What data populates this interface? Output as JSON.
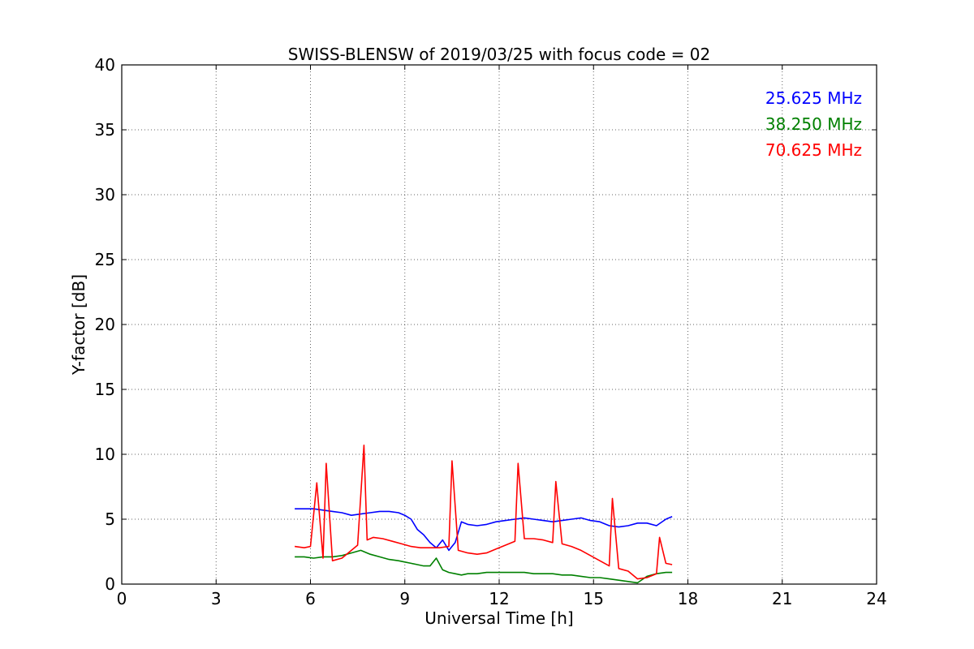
{
  "chart_data": {
    "type": "line",
    "title": "SWISS-BLENSW of 2019/03/25 with focus code = 02",
    "xlabel": "Universal Time [h]",
    "ylabel": "Y-factor [dB]",
    "xlim": [
      0,
      24
    ],
    "ylim": [
      0,
      40
    ],
    "xticks": [
      0,
      3,
      6,
      9,
      12,
      15,
      18,
      21,
      24
    ],
    "yticks": [
      0,
      5,
      10,
      15,
      20,
      25,
      30,
      35,
      40
    ],
    "grid": true,
    "legend_position": "top-right",
    "series": [
      {
        "name": "25.625 MHz",
        "color": "#0000ff",
        "x": [
          5.5,
          5.8,
          6.1,
          6.4,
          6.7,
          7.0,
          7.3,
          7.6,
          7.9,
          8.2,
          8.5,
          8.8,
          9.0,
          9.2,
          9.4,
          9.6,
          9.8,
          10.0,
          10.2,
          10.4,
          10.6,
          10.8,
          11.0,
          11.3,
          11.6,
          11.9,
          12.2,
          12.5,
          12.8,
          13.1,
          13.4,
          13.7,
          14.0,
          14.3,
          14.6,
          14.9,
          15.2,
          15.5,
          15.8,
          16.1,
          16.4,
          16.7,
          17.0,
          17.3,
          17.5
        ],
        "y": [
          5.8,
          5.8,
          5.8,
          5.7,
          5.6,
          5.5,
          5.3,
          5.4,
          5.5,
          5.6,
          5.6,
          5.5,
          5.3,
          5.0,
          4.2,
          3.8,
          3.2,
          2.8,
          3.4,
          2.6,
          3.2,
          4.8,
          4.6,
          4.5,
          4.6,
          4.8,
          4.9,
          5.0,
          5.1,
          5.0,
          4.9,
          4.8,
          4.9,
          5.0,
          5.1,
          4.9,
          4.8,
          4.5,
          4.4,
          4.5,
          4.7,
          4.7,
          4.5,
          5.0,
          5.2
        ]
      },
      {
        "name": "38.250 MHz",
        "color": "#008000",
        "x": [
          5.5,
          5.8,
          6.1,
          6.4,
          6.7,
          7.0,
          7.3,
          7.6,
          7.9,
          8.2,
          8.5,
          8.8,
          9.0,
          9.2,
          9.4,
          9.6,
          9.8,
          10.0,
          10.2,
          10.4,
          10.6,
          10.8,
          11.0,
          11.3,
          11.6,
          11.9,
          12.2,
          12.5,
          12.8,
          13.1,
          13.4,
          13.7,
          14.0,
          14.3,
          14.6,
          14.9,
          15.2,
          15.5,
          15.8,
          16.1,
          16.4,
          16.7,
          17.0,
          17.3,
          17.5
        ],
        "y": [
          2.1,
          2.1,
          2.0,
          2.1,
          2.1,
          2.2,
          2.4,
          2.6,
          2.3,
          2.1,
          1.9,
          1.8,
          1.7,
          1.6,
          1.5,
          1.4,
          1.4,
          2.0,
          1.1,
          0.9,
          0.8,
          0.7,
          0.8,
          0.8,
          0.9,
          0.9,
          0.9,
          0.9,
          0.9,
          0.8,
          0.8,
          0.8,
          0.7,
          0.7,
          0.6,
          0.5,
          0.5,
          0.4,
          0.3,
          0.2,
          0.1,
          0.6,
          0.8,
          0.9,
          0.9
        ]
      },
      {
        "name": "70.625 MHz",
        "color": "#ff0000",
        "x": [
          5.5,
          5.8,
          6.0,
          6.2,
          6.4,
          6.5,
          6.7,
          7.0,
          7.2,
          7.5,
          7.7,
          7.8,
          8.0,
          8.3,
          8.6,
          8.9,
          9.2,
          9.5,
          9.8,
          10.1,
          10.4,
          10.5,
          10.7,
          11.0,
          11.3,
          11.6,
          11.9,
          12.2,
          12.5,
          12.6,
          12.8,
          13.1,
          13.4,
          13.7,
          13.8,
          14.0,
          14.3,
          14.6,
          14.9,
          15.2,
          15.5,
          15.6,
          15.8,
          16.1,
          16.4,
          16.7,
          17.0,
          17.1,
          17.3,
          17.5
        ],
        "y": [
          2.9,
          2.8,
          2.9,
          7.8,
          2.0,
          9.3,
          1.8,
          2.0,
          2.4,
          3.0,
          10.7,
          3.4,
          3.6,
          3.5,
          3.3,
          3.1,
          2.9,
          2.8,
          2.8,
          2.8,
          2.9,
          9.5,
          2.6,
          2.4,
          2.3,
          2.4,
          2.7,
          3.0,
          3.3,
          9.3,
          3.5,
          3.5,
          3.4,
          3.2,
          7.9,
          3.1,
          2.9,
          2.6,
          2.2,
          1.8,
          1.4,
          6.6,
          1.2,
          1.0,
          0.4,
          0.5,
          0.8,
          3.6,
          1.6,
          1.5
        ]
      }
    ]
  }
}
